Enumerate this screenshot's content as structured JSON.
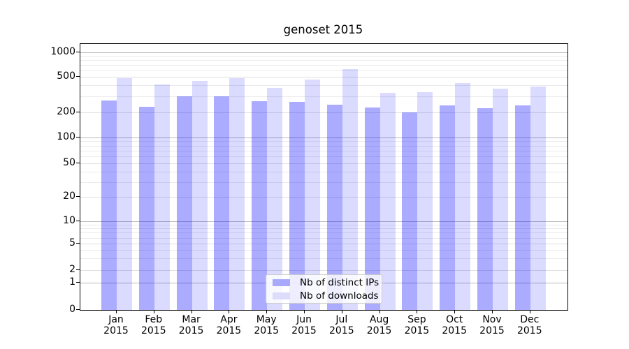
{
  "title": "genoset 2015",
  "chart_data": {
    "type": "bar",
    "title": "genoset 2015",
    "categories": [
      "Jan 2015",
      "Feb 2015",
      "Mar 2015",
      "Apr 2015",
      "May 2015",
      "Jun 2015",
      "Jul 2015",
      "Aug 2015",
      "Sep 2015",
      "Oct 2015",
      "Nov 2015",
      "Dec 2015"
    ],
    "series": [
      {
        "name": "Nb of distinct IPs",
        "color": "rgba(0,0,255,0.33)",
        "legend_swatch_color": "#a9a9fb",
        "values": [
          270,
          230,
          300,
          300,
          262,
          260,
          243,
          225,
          198,
          236,
          222,
          236
        ]
      },
      {
        "name": "Nb of downloads",
        "color": "rgba(0,0,255,0.14)",
        "legend_swatch_color": "#dcdcfb",
        "values": [
          475,
          410,
          445,
          480,
          375,
          460,
          620,
          330,
          332,
          425,
          363,
          382
        ]
      }
    ],
    "xlabel": "",
    "ylabel": "",
    "yscale": "log above 1 (symlog), linear 0-1 at baseline",
    "y_ticks": [
      0,
      1,
      2,
      5,
      10,
      20,
      50,
      100,
      200,
      500,
      1000
    ],
    "y_major_gridlines": [
      1,
      10,
      100,
      1000
    ],
    "y_secondary_gridlines": [
      2,
      5,
      20,
      50,
      200,
      500
    ],
    "ylim": [
      0,
      1200
    ],
    "grid": "horizontal, major + log minor",
    "legend_position": "inside plot, lower center"
  }
}
